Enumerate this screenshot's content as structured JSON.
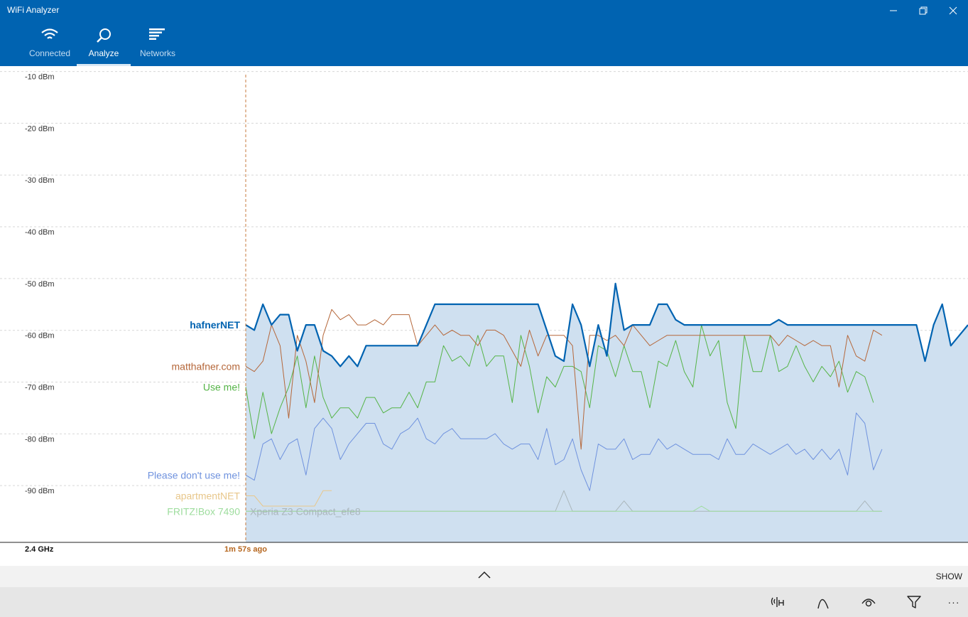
{
  "window": {
    "title": "WiFi Analyzer"
  },
  "nav": {
    "tabs": [
      {
        "label": "Connected"
      },
      {
        "label": "Analyze"
      },
      {
        "label": "Networks"
      }
    ]
  },
  "colors": {
    "accent": "#0063b1",
    "hafnerNET": "#0063b1",
    "matthafner": "#b5673a",
    "useme": "#55b447",
    "dontuse": "#6f92de",
    "apartment": "#e8c78b",
    "fritz": "#9edd9e",
    "xperia": "#aab6bb",
    "area": "#cfe0f0"
  },
  "chart_data": {
    "type": "line",
    "band_label": "2.4 GHz",
    "time_label": "1m 57s ago",
    "ylim": [
      -100,
      -8
    ],
    "y_ticks": [
      "-10 dBm",
      "-20 dBm",
      "-30 dBm",
      "-40 dBm",
      "-50 dBm",
      "-60 dBm",
      "-70 dBm",
      "-80 dBm",
      "-90 dBm"
    ],
    "x_count": 85,
    "series": [
      {
        "name": "hafnerNET",
        "highlight": true,
        "values": [
          -58,
          -59,
          -54,
          -58,
          -56,
          -56,
          -63,
          -58,
          -58,
          -63,
          -64,
          -66,
          -64,
          -66,
          -62,
          -62,
          -62,
          -62,
          -62,
          -62,
          -62,
          -58,
          -54,
          -54,
          -54,
          -54,
          -54,
          -54,
          -54,
          -54,
          -54,
          -54,
          -54,
          -54,
          -54,
          -59,
          -64,
          -65,
          -54,
          -58,
          -66,
          -58,
          -64,
          -50,
          -59,
          -58,
          -58,
          -58,
          -54,
          -54,
          -57,
          -58,
          -58,
          -58,
          -58,
          -58,
          -58,
          -58,
          -58,
          -58,
          -58,
          -58,
          -57,
          -58,
          -58,
          -58,
          -58,
          -58,
          -58,
          -58,
          -58,
          -58,
          -58,
          -58,
          -58,
          -58,
          -58,
          -58,
          -58,
          -65,
          -58,
          -54,
          -62,
          -60,
          -58
        ]
      },
      {
        "name": "matthafner.com",
        "values": [
          -66,
          -67,
          -65,
          -58,
          -62,
          -76,
          -60,
          -65,
          -73,
          -60,
          -55,
          -57,
          -56,
          -58,
          -58,
          -57,
          -58,
          -56,
          -56,
          -56,
          -62,
          -60,
          -58,
          -60,
          -59,
          -60,
          -60,
          -62,
          -59,
          -59,
          -60,
          -63,
          -66,
          -59,
          -64,
          -60,
          -60,
          -60,
          -62,
          -82,
          -60,
          -60,
          -61,
          -60,
          -62,
          -58,
          -60,
          -62,
          -61,
          -60,
          -60,
          -60,
          -60,
          -60,
          -60,
          -60,
          -60,
          -60,
          -60,
          -60,
          -60,
          -60,
          -62,
          -60,
          -61,
          -62,
          -61,
          -62,
          -62,
          -70,
          -60,
          -64,
          -65,
          -59,
          -60
        ]
      },
      {
        "name": "Use me!",
        "values": [
          -70,
          -80,
          -71,
          -79,
          -74,
          -70,
          -64,
          -74,
          -64,
          -72,
          -76,
          -74,
          -74,
          -76,
          -72,
          -72,
          -75,
          -74,
          -74,
          -71,
          -74,
          -69,
          -69,
          -62,
          -65,
          -64,
          -66,
          -60,
          -66,
          -64,
          -64,
          -73,
          -60,
          -66,
          -75,
          -68,
          -70,
          -66,
          -66,
          -67,
          -74,
          -62,
          -63,
          -68,
          -62,
          -67,
          -67,
          -74,
          -65,
          -66,
          -61,
          -67,
          -70,
          -58,
          -64,
          -61,
          -73,
          -78,
          -60,
          -67,
          -67,
          -60,
          -67,
          -66,
          -62,
          -66,
          -69,
          -66,
          -68,
          -65,
          -71,
          -67,
          -68,
          -73
        ]
      },
      {
        "name": "Please don't use me!",
        "values": [
          -87,
          -88,
          -81,
          -80,
          -84,
          -81,
          -80,
          -87,
          -78,
          -76,
          -78,
          -84,
          -81,
          -79,
          -77,
          -77,
          -81,
          -82,
          -79,
          -78,
          -76,
          -80,
          -81,
          -79,
          -78,
          -80,
          -80,
          -80,
          -80,
          -79,
          -81,
          -82,
          -81,
          -81,
          -84,
          -78,
          -85,
          -84,
          -80,
          -86,
          -90,
          -81,
          -82,
          -82,
          -80,
          -84,
          -83,
          -83,
          -80,
          -82,
          -81,
          -82,
          -83,
          -83,
          -83,
          -84,
          -80,
          -83,
          -83,
          -81,
          -82,
          -83,
          -82,
          -81,
          -83,
          -82,
          -84,
          -82,
          -84,
          -82,
          -87,
          -75,
          -77,
          -86,
          -82
        ]
      },
      {
        "name": "apartmentNET",
        "values": [
          -91,
          -91,
          -93,
          -93,
          -93,
          -93,
          -93,
          -93,
          -93,
          -90,
          -90
        ]
      },
      {
        "name": "FRITZ!Box 7490",
        "values": [
          -94,
          -94,
          -94,
          -94,
          -94,
          -94,
          -94,
          -94,
          -94,
          -94,
          -94,
          -94,
          -94,
          -94,
          -94,
          -94,
          -94,
          -94,
          -94,
          -94,
          -94,
          -94,
          -94,
          -94,
          -94,
          -94,
          -94,
          -94,
          -94,
          -94,
          -94,
          -94,
          -94,
          -94,
          -94,
          -94,
          -94,
          -94,
          -94,
          -94,
          -94,
          -94,
          -94,
          -94,
          -94,
          -94,
          -94,
          -94,
          -94,
          -94,
          -94,
          -94,
          -94,
          -93,
          -94,
          -94,
          -94,
          -94,
          -94,
          -94,
          -94,
          -94,
          -94,
          -94,
          -94,
          -94,
          -94,
          -94,
          -94,
          -94,
          -94,
          -94,
          -94,
          -94,
          -94
        ]
      },
      {
        "name": "Xperia Z3 Compact_efe8",
        "values": [
          -94,
          -94,
          -94,
          -94,
          -94,
          -94,
          -94,
          -94,
          -94,
          -94,
          -94,
          -94,
          -94,
          -94,
          -94,
          -94,
          -94,
          -94,
          -94,
          -94,
          -94,
          -94,
          -94,
          -94,
          -94,
          -94,
          -94,
          -94,
          -94,
          -94,
          -94,
          -94,
          -94,
          -94,
          -94,
          -94,
          -94,
          -90,
          -94,
          -94,
          -94,
          -94,
          -94,
          -94,
          -92,
          -94,
          -94,
          -94,
          -94,
          -94,
          -94,
          -94,
          -94,
          -94,
          -94,
          -94,
          -94,
          -94,
          -94,
          -94,
          -94,
          -94,
          -94,
          -94,
          -94,
          -94,
          -94,
          -94,
          -94,
          -94,
          -94,
          -94,
          -92,
          -94,
          -94
        ]
      }
    ]
  },
  "showbar": {
    "label": "SHOW"
  },
  "commands": [
    {
      "icon": "antenna-icon"
    },
    {
      "icon": "channel-curve-icon"
    },
    {
      "icon": "eye-icon"
    },
    {
      "icon": "filter-icon"
    },
    {
      "icon": "more-icon",
      "glyph": "···"
    }
  ]
}
